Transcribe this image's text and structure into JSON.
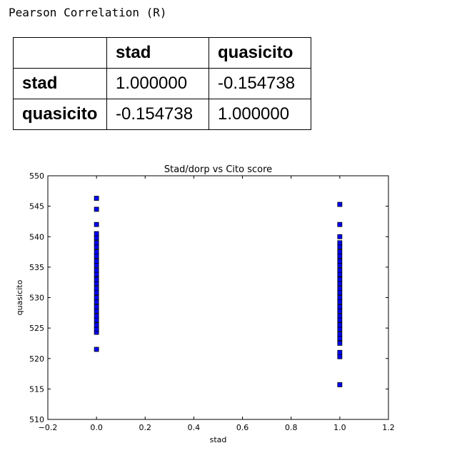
{
  "heading": "Pearson Correlation (R)",
  "table": {
    "columns": [
      "",
      "stad",
      "quasicito"
    ],
    "rows": [
      {
        "label": "stad",
        "values": [
          "1.000000",
          "-0.154738"
        ]
      },
      {
        "label": "quasicito",
        "values": [
          "-0.154738",
          "1.000000"
        ]
      }
    ]
  },
  "chart_data": {
    "type": "scatter",
    "title": "Stad/dorp vs Cito score",
    "xlabel": "stad",
    "ylabel": "quasicito",
    "xlim": [
      -0.2,
      1.2
    ],
    "ylim": [
      510,
      550
    ],
    "xticks": [
      "−0.2",
      "0.0",
      "0.2",
      "0.4",
      "0.6",
      "0.8",
      "1.0",
      "1.2"
    ],
    "xtick_values": [
      -0.2,
      0.0,
      0.2,
      0.4,
      0.6,
      0.8,
      1.0,
      1.2
    ],
    "yticks": [
      "510",
      "515",
      "520",
      "525",
      "530",
      "535",
      "540",
      "545",
      "550"
    ],
    "ytick_values": [
      510,
      515,
      520,
      525,
      530,
      535,
      540,
      545,
      550
    ],
    "grid": false,
    "marker_color": "#0000ff",
    "series": [
      {
        "x": [
          0,
          0,
          0,
          0,
          0,
          0,
          0,
          0,
          0,
          0,
          0,
          0,
          0,
          0,
          0,
          0,
          0,
          0,
          0,
          0,
          0,
          0,
          0,
          0,
          0,
          0,
          0,
          1,
          1,
          1,
          1,
          1,
          1,
          1,
          1,
          1,
          1,
          1,
          1,
          1,
          1,
          1,
          1,
          1,
          1,
          1,
          1,
          1,
          1,
          1,
          1,
          1,
          1,
          1,
          1,
          1
        ],
        "y": [
          521.5,
          524.3,
          524.8,
          525.5,
          526.3,
          527.0,
          527.8,
          528.5,
          529.3,
          530.0,
          530.8,
          531.5,
          532.3,
          533.0,
          533.8,
          534.5,
          535.3,
          536.0,
          536.8,
          537.5,
          538.3,
          539.0,
          539.8,
          540.5,
          542.0,
          544.5,
          546.3,
          515.7,
          520.3,
          521.0,
          522.5,
          523.3,
          524.0,
          524.8,
          525.5,
          526.3,
          527.0,
          527.8,
          528.5,
          529.3,
          530.0,
          530.8,
          531.5,
          532.3,
          533.0,
          533.8,
          534.5,
          535.3,
          536.0,
          536.8,
          537.5,
          538.3,
          539.0,
          540.0,
          542.0,
          545.3
        ]
      }
    ]
  }
}
